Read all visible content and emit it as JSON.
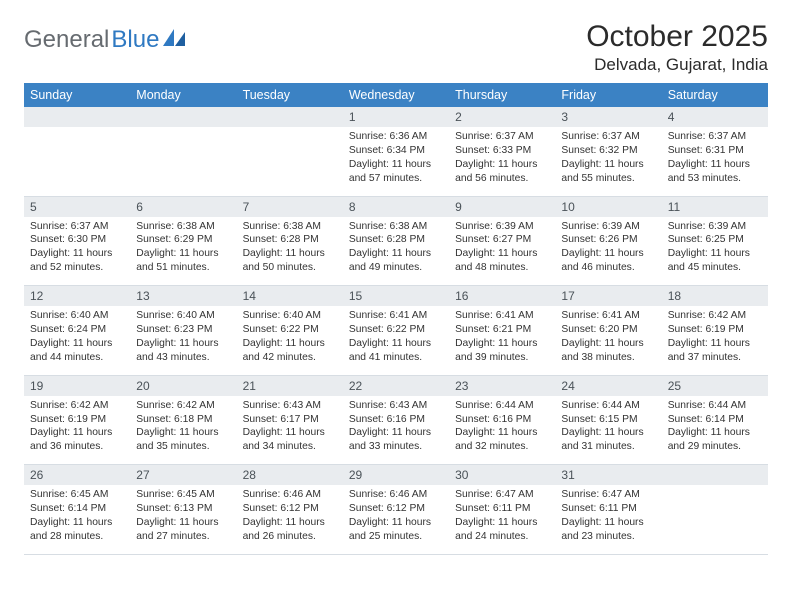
{
  "logo": {
    "text1": "General",
    "text2": "Blue"
  },
  "title": "October 2025",
  "location": "Delvada, Gujarat, India",
  "colors": {
    "header_bg": "#3b82c4",
    "header_text": "#ffffff",
    "daynum_bg": "#e9ecef",
    "daynum_text": "#4a5258",
    "body_text": "#333333",
    "logo_gray": "#666b70",
    "logo_blue": "#2f79c2"
  },
  "days": [
    "Sunday",
    "Monday",
    "Tuesday",
    "Wednesday",
    "Thursday",
    "Friday",
    "Saturday"
  ],
  "weeks": [
    [
      null,
      null,
      null,
      {
        "n": "1",
        "sr": "6:36 AM",
        "ss": "6:34 PM",
        "dh": "11",
        "dm": "57"
      },
      {
        "n": "2",
        "sr": "6:37 AM",
        "ss": "6:33 PM",
        "dh": "11",
        "dm": "56"
      },
      {
        "n": "3",
        "sr": "6:37 AM",
        "ss": "6:32 PM",
        "dh": "11",
        "dm": "55"
      },
      {
        "n": "4",
        "sr": "6:37 AM",
        "ss": "6:31 PM",
        "dh": "11",
        "dm": "53"
      }
    ],
    [
      {
        "n": "5",
        "sr": "6:37 AM",
        "ss": "6:30 PM",
        "dh": "11",
        "dm": "52"
      },
      {
        "n": "6",
        "sr": "6:38 AM",
        "ss": "6:29 PM",
        "dh": "11",
        "dm": "51"
      },
      {
        "n": "7",
        "sr": "6:38 AM",
        "ss": "6:28 PM",
        "dh": "11",
        "dm": "50"
      },
      {
        "n": "8",
        "sr": "6:38 AM",
        "ss": "6:28 PM",
        "dh": "11",
        "dm": "49"
      },
      {
        "n": "9",
        "sr": "6:39 AM",
        "ss": "6:27 PM",
        "dh": "11",
        "dm": "48"
      },
      {
        "n": "10",
        "sr": "6:39 AM",
        "ss": "6:26 PM",
        "dh": "11",
        "dm": "46"
      },
      {
        "n": "11",
        "sr": "6:39 AM",
        "ss": "6:25 PM",
        "dh": "11",
        "dm": "45"
      }
    ],
    [
      {
        "n": "12",
        "sr": "6:40 AM",
        "ss": "6:24 PM",
        "dh": "11",
        "dm": "44"
      },
      {
        "n": "13",
        "sr": "6:40 AM",
        "ss": "6:23 PM",
        "dh": "11",
        "dm": "43"
      },
      {
        "n": "14",
        "sr": "6:40 AM",
        "ss": "6:22 PM",
        "dh": "11",
        "dm": "42"
      },
      {
        "n": "15",
        "sr": "6:41 AM",
        "ss": "6:22 PM",
        "dh": "11",
        "dm": "41"
      },
      {
        "n": "16",
        "sr": "6:41 AM",
        "ss": "6:21 PM",
        "dh": "11",
        "dm": "39"
      },
      {
        "n": "17",
        "sr": "6:41 AM",
        "ss": "6:20 PM",
        "dh": "11",
        "dm": "38"
      },
      {
        "n": "18",
        "sr": "6:42 AM",
        "ss": "6:19 PM",
        "dh": "11",
        "dm": "37"
      }
    ],
    [
      {
        "n": "19",
        "sr": "6:42 AM",
        "ss": "6:19 PM",
        "dh": "11",
        "dm": "36"
      },
      {
        "n": "20",
        "sr": "6:42 AM",
        "ss": "6:18 PM",
        "dh": "11",
        "dm": "35"
      },
      {
        "n": "21",
        "sr": "6:43 AM",
        "ss": "6:17 PM",
        "dh": "11",
        "dm": "34"
      },
      {
        "n": "22",
        "sr": "6:43 AM",
        "ss": "6:16 PM",
        "dh": "11",
        "dm": "33"
      },
      {
        "n": "23",
        "sr": "6:44 AM",
        "ss": "6:16 PM",
        "dh": "11",
        "dm": "32"
      },
      {
        "n": "24",
        "sr": "6:44 AM",
        "ss": "6:15 PM",
        "dh": "11",
        "dm": "31"
      },
      {
        "n": "25",
        "sr": "6:44 AM",
        "ss": "6:14 PM",
        "dh": "11",
        "dm": "29"
      }
    ],
    [
      {
        "n": "26",
        "sr": "6:45 AM",
        "ss": "6:14 PM",
        "dh": "11",
        "dm": "28"
      },
      {
        "n": "27",
        "sr": "6:45 AM",
        "ss": "6:13 PM",
        "dh": "11",
        "dm": "27"
      },
      {
        "n": "28",
        "sr": "6:46 AM",
        "ss": "6:12 PM",
        "dh": "11",
        "dm": "26"
      },
      {
        "n": "29",
        "sr": "6:46 AM",
        "ss": "6:12 PM",
        "dh": "11",
        "dm": "25"
      },
      {
        "n": "30",
        "sr": "6:47 AM",
        "ss": "6:11 PM",
        "dh": "11",
        "dm": "24"
      },
      {
        "n": "31",
        "sr": "6:47 AM",
        "ss": "6:11 PM",
        "dh": "11",
        "dm": "23"
      },
      null
    ]
  ],
  "labels": {
    "sunrise": "Sunrise:",
    "sunset": "Sunset:",
    "daylight": "Daylight:",
    "hours": "hours",
    "and": "and",
    "minutes": "minutes."
  }
}
